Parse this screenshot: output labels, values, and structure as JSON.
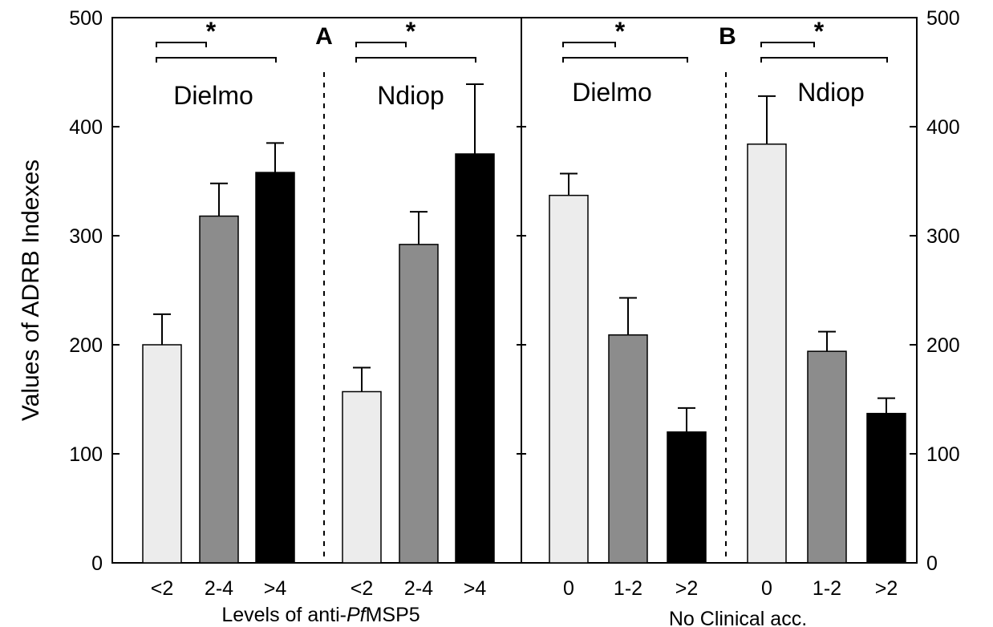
{
  "chart_data": {
    "type": "bar",
    "ylabel": "Values of ADRB Indexes",
    "ylim": [
      0,
      500
    ],
    "yticks": [
      0,
      100,
      200,
      300,
      400,
      500
    ],
    "grid": false,
    "colors": {
      "low": "#ececec",
      "mid": "#8c8c8c",
      "high": "#000000",
      "edge": "#000000"
    },
    "panels": [
      {
        "label": "A",
        "xlabel_parts": [
          "Levels of anti-",
          "Pf",
          "MSP5"
        ],
        "groups": [
          {
            "name": "Dielmo",
            "categories": [
              "<2",
              "2-4",
              ">4"
            ],
            "values": [
              200,
              318,
              358
            ],
            "errors": [
              28,
              30,
              27
            ]
          },
          {
            "name": "Ndiop",
            "categories": [
              "<2",
              "2-4",
              ">4"
            ],
            "values": [
              157,
              292,
              375
            ],
            "errors": [
              22,
              30,
              64
            ]
          }
        ]
      },
      {
        "label": "B",
        "xlabel": "No Clinical acc.",
        "groups": [
          {
            "name": "Dielmo",
            "categories": [
              "0",
              "1-2",
              ">2"
            ],
            "values": [
              337,
              209,
              120
            ],
            "errors": [
              20,
              34,
              22
            ]
          },
          {
            "name": "Ndiop",
            "categories": [
              "0",
              "1-2",
              ">2"
            ],
            "values": [
              384,
              194,
              137
            ],
            "errors": [
              44,
              18,
              14
            ]
          }
        ]
      }
    ],
    "annotations": {
      "significance": "*"
    }
  }
}
